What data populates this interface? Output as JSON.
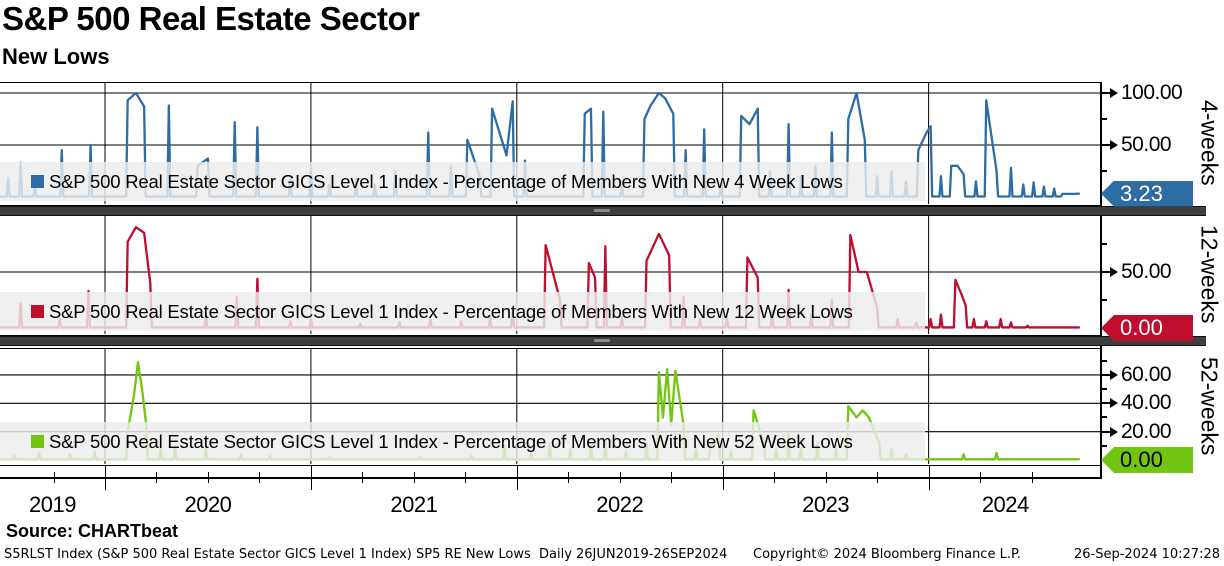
{
  "header": {
    "title": "S&P 500 Real Estate Sector",
    "subtitle": "New Lows"
  },
  "x_axis": {
    "start": 2019.49,
    "end": 2024.745,
    "year_lines": [
      2020,
      2021,
      2022,
      2023,
      2024
    ],
    "labels": [
      "2019",
      "2020",
      "2021",
      "2022",
      "2023",
      "2024"
    ],
    "quarter_ticks": [
      2019.75,
      2020.25,
      2020.5,
      2020.75,
      2021.25,
      2021.5,
      2021.75,
      2022.25,
      2022.5,
      2022.75,
      2023.25,
      2023.5,
      2023.75,
      2024.25,
      2024.5
    ]
  },
  "chart_data": [
    {
      "type": "line",
      "panel_label": "4-weeks",
      "legend": "S&P 500 Real Estate Sector GICS Level 1 Index - Percentage of Members With New 4 Week Lows",
      "color": "#2e6da4",
      "tag_text_color": "#ffffff",
      "last_value": "3.23",
      "ylim": [
        0,
        110
      ],
      "grid": "on",
      "major_ticks": [
        {
          "v": 100,
          "label": "100.00"
        },
        {
          "v": 50,
          "label": "50.00"
        }
      ],
      "minor_ticks": [
        25,
        75
      ],
      "gridlines": [
        50,
        100
      ],
      "series": [
        [
          2019.49,
          0.5
        ],
        [
          2019.53,
          18
        ],
        [
          2019.59,
          33
        ],
        [
          2019.66,
          10
        ],
        [
          2019.79,
          45
        ],
        [
          2019.93,
          50
        ],
        [
          2020.11,
          93
        ],
        [
          2020.15,
          100,
          1
        ],
        [
          2020.19,
          87,
          1
        ],
        [
          2020.31,
          88
        ],
        [
          2020.45,
          30
        ],
        [
          2020.5,
          37,
          1
        ],
        [
          2020.63,
          72
        ],
        [
          2020.74,
          67
        ],
        [
          2020.9,
          18
        ],
        [
          2021.0,
          28
        ],
        [
          2021.09,
          12
        ],
        [
          2021.22,
          18
        ],
        [
          2021.31,
          12
        ],
        [
          2021.41,
          25
        ],
        [
          2021.57,
          62
        ],
        [
          2021.68,
          30
        ],
        [
          2021.76,
          55
        ],
        [
          2021.82,
          20,
          1
        ],
        [
          2021.88,
          85
        ],
        [
          2021.95,
          40,
          1
        ],
        [
          2021.98,
          92,
          1
        ],
        [
          2022.04,
          35
        ],
        [
          2022.33,
          80
        ],
        [
          2022.36,
          85,
          1
        ],
        [
          2022.42,
          82
        ],
        [
          2022.51,
          15
        ],
        [
          2022.62,
          75
        ],
        [
          2022.65,
          88,
          1
        ],
        [
          2022.69,
          100,
          1
        ],
        [
          2022.72,
          95,
          1
        ],
        [
          2022.76,
          80,
          1
        ],
        [
          2022.82,
          45
        ],
        [
          2022.91,
          65
        ],
        [
          2022.99,
          12
        ],
        [
          2023.09,
          78
        ],
        [
          2023.13,
          70,
          1
        ],
        [
          2023.17,
          85,
          1
        ],
        [
          2023.23,
          25
        ],
        [
          2023.32,
          70
        ],
        [
          2023.38,
          20
        ],
        [
          2023.45,
          30
        ],
        [
          2023.53,
          62
        ],
        [
          2023.61,
          75
        ],
        [
          2023.65,
          100,
          1
        ],
        [
          2023.69,
          55,
          1
        ],
        [
          2023.75,
          20
        ],
        [
          2023.82,
          25
        ],
        [
          2023.89,
          15
        ],
        [
          2023.95,
          45
        ],
        [
          2023.99,
          62,
          1
        ],
        [
          2024.01,
          68,
          1
        ],
        [
          2024.06,
          20
        ],
        [
          2024.11,
          30
        ],
        [
          2024.14,
          30,
          1
        ],
        [
          2024.17,
          22,
          1
        ],
        [
          2024.23,
          15
        ],
        [
          2024.28,
          93
        ],
        [
          2024.33,
          25,
          1
        ],
        [
          2024.4,
          28
        ],
        [
          2024.46,
          12
        ],
        [
          2024.51,
          14
        ],
        [
          2024.56,
          10
        ],
        [
          2024.61,
          8
        ],
        [
          2024.65,
          3
        ],
        [
          2024.68,
          3,
          1
        ],
        [
          2024.71,
          3,
          1
        ],
        [
          2024.73,
          3.23,
          1
        ]
      ]
    },
    {
      "type": "line",
      "panel_label": "12-weeks",
      "legend": "S&P 500 Real Estate Sector GICS Level 1 Index - Percentage of Members With New 12 Week Lows",
      "color": "#bf0d2e",
      "tag_text_color": "#ffffff",
      "last_value": "0.00",
      "ylim": [
        0,
        102
      ],
      "grid": "on",
      "major_ticks": [
        {
          "v": 50,
          "label": "50.00"
        }
      ],
      "minor_ticks": [
        25,
        75
      ],
      "gridlines": [
        50
      ],
      "series": [
        [
          2019.49,
          0.5
        ],
        [
          2019.59,
          22
        ],
        [
          2019.78,
          8
        ],
        [
          2019.92,
          33
        ],
        [
          2020.11,
          77
        ],
        [
          2020.15,
          90,
          1
        ],
        [
          2020.19,
          85,
          1
        ],
        [
          2020.22,
          40,
          1
        ],
        [
          2020.49,
          12
        ],
        [
          2020.64,
          28
        ],
        [
          2020.74,
          44
        ],
        [
          2020.9,
          6
        ],
        [
          2021.0,
          8
        ],
        [
          2021.24,
          4
        ],
        [
          2021.43,
          5
        ],
        [
          2021.58,
          8
        ],
        [
          2021.73,
          6
        ],
        [
          2021.87,
          10
        ],
        [
          2021.98,
          15
        ],
        [
          2022.14,
          74
        ],
        [
          2022.21,
          25,
          1
        ],
        [
          2022.35,
          58
        ],
        [
          2022.38,
          45,
          1
        ],
        [
          2022.43,
          73
        ],
        [
          2022.51,
          10
        ],
        [
          2022.63,
          60
        ],
        [
          2022.69,
          84,
          1
        ],
        [
          2022.74,
          65,
          1
        ],
        [
          2022.81,
          28
        ],
        [
          2022.89,
          8
        ],
        [
          2023.02,
          10
        ],
        [
          2023.12,
          63
        ],
        [
          2023.17,
          45,
          1
        ],
        [
          2023.24,
          15
        ],
        [
          2023.32,
          34
        ],
        [
          2023.43,
          12
        ],
        [
          2023.53,
          25
        ],
        [
          2023.62,
          83
        ],
        [
          2023.66,
          50,
          1
        ],
        [
          2023.7,
          50,
          1
        ],
        [
          2023.75,
          18,
          1
        ],
        [
          2023.85,
          8
        ],
        [
          2023.94,
          5
        ],
        [
          2024.01,
          8
        ],
        [
          2024.06,
          12
        ],
        [
          2024.13,
          43
        ],
        [
          2024.16,
          30,
          1
        ],
        [
          2024.18,
          20,
          1
        ],
        [
          2024.22,
          8
        ],
        [
          2024.28,
          6
        ],
        [
          2024.35,
          8
        ],
        [
          2024.4,
          5
        ],
        [
          2024.48,
          2
        ],
        [
          2024.55,
          0.5
        ],
        [
          2024.73,
          0.5
        ]
      ]
    },
    {
      "type": "line",
      "panel_label": "52-weeks",
      "legend": "S&P 500 Real Estate Sector GICS Level 1 Index - Percentage of Members With New 52 Week Lows",
      "color": "#72c510",
      "tag_text_color": "#000000",
      "last_value": "0.00",
      "ylim": [
        0,
        79
      ],
      "grid": "on",
      "major_ticks": [
        {
          "v": 60,
          "label": "60.00"
        },
        {
          "v": 40,
          "label": "40.00"
        },
        {
          "v": 20,
          "label": "20.00"
        }
      ],
      "minor_ticks": [
        10,
        30,
        50,
        70
      ],
      "gridlines": [
        20,
        40,
        60
      ],
      "series": [
        [
          2019.49,
          0.5
        ],
        [
          2019.56,
          3
        ],
        [
          2019.68,
          5
        ],
        [
          2019.83,
          4
        ],
        [
          2019.95,
          6
        ],
        [
          2020.11,
          20
        ],
        [
          2020.14,
          45,
          1
        ],
        [
          2020.16,
          69,
          1
        ],
        [
          2020.18,
          50,
          1
        ],
        [
          2020.2,
          25,
          1
        ],
        [
          2020.27,
          8
        ],
        [
          2020.34,
          10
        ],
        [
          2020.49,
          8
        ],
        [
          2020.66,
          4
        ],
        [
          2020.8,
          3
        ],
        [
          2021.09,
          2
        ],
        [
          2021.53,
          2
        ],
        [
          2021.78,
          3
        ],
        [
          2021.94,
          10
        ],
        [
          2022.07,
          5
        ],
        [
          2022.16,
          12
        ],
        [
          2022.26,
          8
        ],
        [
          2022.36,
          10
        ],
        [
          2022.43,
          14
        ],
        [
          2022.53,
          6
        ],
        [
          2022.63,
          12
        ],
        [
          2022.69,
          62
        ],
        [
          2022.71,
          30,
          1
        ],
        [
          2022.73,
          64,
          1
        ],
        [
          2022.75,
          25,
          1
        ],
        [
          2022.77,
          63,
          1
        ],
        [
          2022.81,
          25,
          1
        ],
        [
          2022.87,
          8
        ],
        [
          2022.94,
          10
        ],
        [
          2022.98,
          18,
          1
        ],
        [
          2023.04,
          6
        ],
        [
          2023.15,
          35
        ],
        [
          2023.2,
          12,
          1
        ],
        [
          2023.26,
          8
        ],
        [
          2023.32,
          18
        ],
        [
          2023.38,
          8
        ],
        [
          2023.46,
          12
        ],
        [
          2023.55,
          8
        ],
        [
          2023.61,
          38
        ],
        [
          2023.65,
          30,
          1
        ],
        [
          2023.68,
          35,
          1
        ],
        [
          2023.71,
          30,
          1
        ],
        [
          2023.76,
          12,
          1
        ],
        [
          2023.82,
          8
        ],
        [
          2023.89,
          4
        ],
        [
          2023.96,
          1
        ],
        [
          2024.1,
          0.5
        ],
        [
          2024.17,
          4
        ],
        [
          2024.33,
          5
        ],
        [
          2024.5,
          0.5
        ],
        [
          2024.73,
          0.5
        ]
      ]
    }
  ],
  "footer": {
    "source": "Source: CHARTbeat",
    "info": "S5RLST Index (S&P 500 Real Estate Sector GICS Level 1 Index) SP5 RE New Lows  Daily 26JUN2019-26SEP2024",
    "copyright": "Copyright© 2024 Bloomberg Finance L.P.",
    "timestamp": "26-Sep-2024 10:27:28"
  }
}
